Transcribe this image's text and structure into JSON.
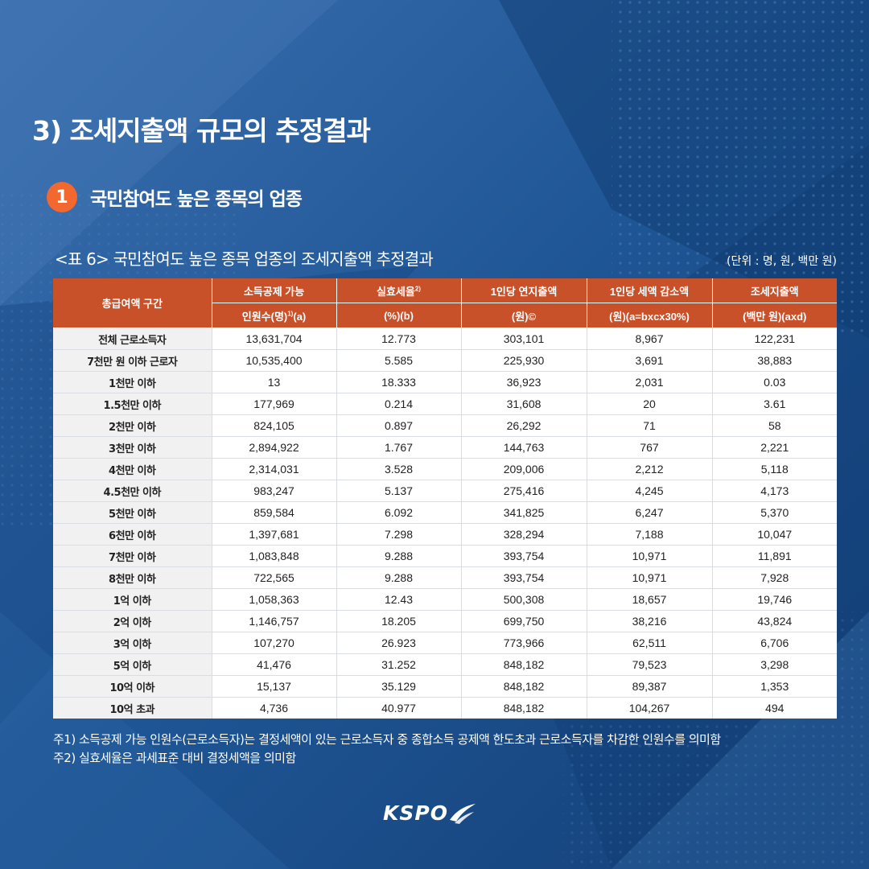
{
  "section_title": "3) 조세지출액 규모의 추정결과",
  "subsection": {
    "number": "1",
    "title": "국민참여도 높은 종목의 업종"
  },
  "table_caption": "<표 6> 국민참여도 높은 종목 업종의 조세지출액 추정결과",
  "unit_note": "(단위 : 명, 원, 백만 원)",
  "table": {
    "corner_header": "총급여액 구간",
    "columns": [
      {
        "title": "소득공제 가능",
        "title_sup": "",
        "sub": "인원수(명)",
        "sub_sup": "1)",
        "sub_tail": "(a)"
      },
      {
        "title": "실효세율",
        "title_sup": "2)",
        "sub": "(%)(b)",
        "sub_sup": "",
        "sub_tail": ""
      },
      {
        "title": "1인당 연지출액",
        "title_sup": "",
        "sub": "(원)©",
        "sub_sup": "",
        "sub_tail": ""
      },
      {
        "title": "1인당 세액 감소액",
        "title_sup": "",
        "sub": "(원)(a=bxcx30%)",
        "sub_sup": "",
        "sub_tail": ""
      },
      {
        "title": "조세지출액",
        "title_sup": "",
        "sub": "(백만 원)(axd)",
        "sub_sup": "",
        "sub_tail": ""
      }
    ],
    "rows": [
      {
        "label": "전체 근로소득자",
        "values": [
          "13,631,704",
          "12.773",
          "303,101",
          "8,967",
          "122,231"
        ]
      },
      {
        "label": "7천만 원 이하 근로자",
        "values": [
          "10,535,400",
          "5.585",
          "225,930",
          "3,691",
          "38,883"
        ]
      },
      {
        "label": "1천만 이하",
        "values": [
          "13",
          "18.333",
          "36,923",
          "2,031",
          "0.03"
        ]
      },
      {
        "label": "1.5천만 이하",
        "values": [
          "177,969",
          "0.214",
          "31,608",
          "20",
          "3.61"
        ]
      },
      {
        "label": "2천만 이하",
        "values": [
          "824,105",
          "0.897",
          "26,292",
          "71",
          "58"
        ]
      },
      {
        "label": "3천만 이하",
        "values": [
          "2,894,922",
          "1.767",
          "144,763",
          "767",
          "2,221"
        ]
      },
      {
        "label": "4천만 이하",
        "values": [
          "2,314,031",
          "3.528",
          "209,006",
          "2,212",
          "5,118"
        ]
      },
      {
        "label": "4.5천만 이하",
        "values": [
          "983,247",
          "5.137",
          "275,416",
          "4,245",
          "4,173"
        ]
      },
      {
        "label": "5천만 이하",
        "values": [
          "859,584",
          "6.092",
          "341,825",
          "6,247",
          "5,370"
        ]
      },
      {
        "label": "6천만 이하",
        "values": [
          "1,397,681",
          "7.298",
          "328,294",
          "7,188",
          "10,047"
        ]
      },
      {
        "label": "7천만 이하",
        "values": [
          "1,083,848",
          "9.288",
          "393,754",
          "10,971",
          "11,891"
        ]
      },
      {
        "label": "8천만 이하",
        "values": [
          "722,565",
          "9.288",
          "393,754",
          "10,971",
          "7,928"
        ]
      },
      {
        "label": "1억 이하",
        "values": [
          "1,058,363",
          "12.43",
          "500,308",
          "18,657",
          "19,746"
        ]
      },
      {
        "label": "2억 이하",
        "values": [
          "1,146,757",
          "18.205",
          "699,750",
          "38,216",
          "43,824"
        ]
      },
      {
        "label": "3억 이하",
        "values": [
          "107,270",
          "26.923",
          "773,966",
          "62,511",
          "6,706"
        ]
      },
      {
        "label": "5억 이하",
        "values": [
          "41,476",
          "31.252",
          "848,182",
          "79,523",
          "3,298"
        ]
      },
      {
        "label": "10억 이하",
        "values": [
          "15,137",
          "35.129",
          "848,182",
          "89,387",
          "1,353"
        ]
      },
      {
        "label": "10억 초과",
        "values": [
          "4,736",
          "40.977",
          "848,182",
          "104,267",
          "494"
        ]
      }
    ]
  },
  "footnotes": [
    "주1) 소득공제 가능 인원수(근로소득자)는 결정세액이 있는 근로소득자 중 종합소득 공제액 한도초과 근로소득자를 차감한 인원수를 의미함",
    "주2) 실효세율은 과세표준 대비 결정세액을 의미함"
  ],
  "logo_text": "KSPO",
  "colors": {
    "accent": "#f3682f",
    "header": "#c9512a",
    "background": "#1d4f8d"
  }
}
